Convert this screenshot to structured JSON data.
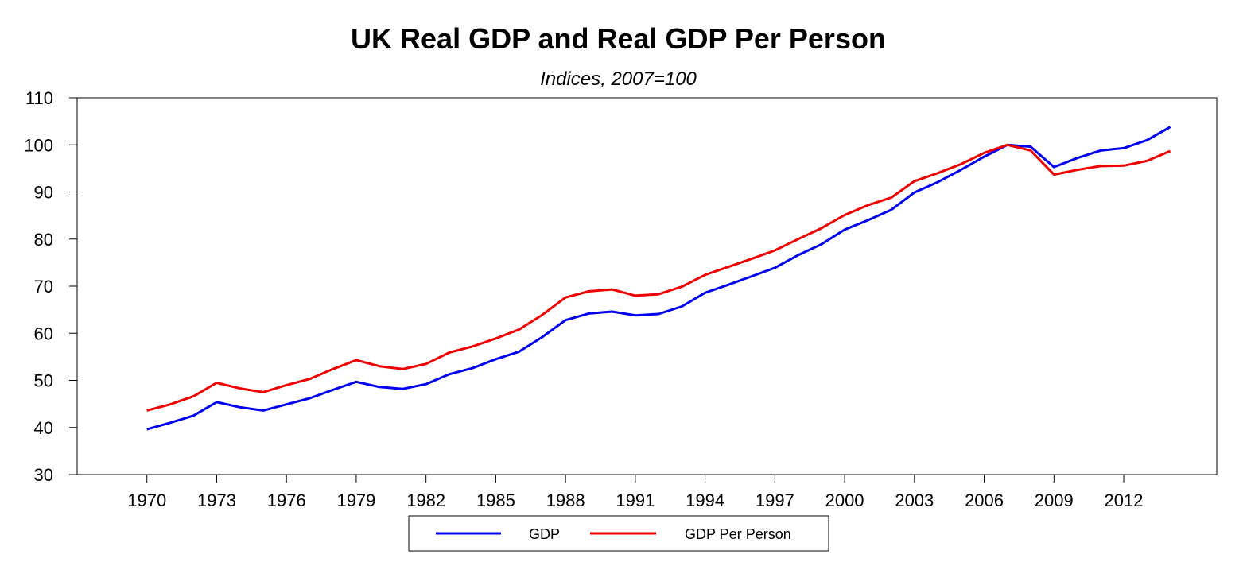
{
  "chart_data": {
    "type": "line",
    "title": "UK Real GDP and Real GDP Per Person",
    "subtitle": "Indices, 2007=100",
    "xlabel": "",
    "ylabel": "",
    "ylim": [
      30,
      110
    ],
    "yticks": [
      30,
      40,
      50,
      60,
      70,
      80,
      90,
      100,
      110
    ],
    "xlim": [
      1967,
      2016
    ],
    "xticks": [
      1970,
      1973,
      1976,
      1979,
      1982,
      1985,
      1988,
      1991,
      1994,
      1997,
      2000,
      2003,
      2006,
      2009,
      2012
    ],
    "grid": false,
    "legend_position": "bottom",
    "x": [
      1970,
      1971,
      1972,
      1973,
      1974,
      1975,
      1976,
      1977,
      1978,
      1979,
      1980,
      1981,
      1982,
      1983,
      1984,
      1985,
      1986,
      1987,
      1988,
      1989,
      1990,
      1991,
      1992,
      1993,
      1994,
      1995,
      1996,
      1997,
      1998,
      1999,
      2000,
      2001,
      2002,
      2003,
      2004,
      2005,
      2006,
      2007,
      2008,
      2009,
      2010,
      2011,
      2012,
      2013,
      2014
    ],
    "series": [
      {
        "name": "GDP",
        "color": "#0000ee",
        "values": [
          39.6,
          41.0,
          42.5,
          45.4,
          44.3,
          43.6,
          44.9,
          46.2,
          48.0,
          49.7,
          48.6,
          48.2,
          49.2,
          51.3,
          52.6,
          54.5,
          56.1,
          59.2,
          62.8,
          64.2,
          64.6,
          63.8,
          64.1,
          65.7,
          68.6,
          70.3,
          72.1,
          73.9,
          76.6,
          78.9,
          82.0,
          84.0,
          86.2,
          89.9,
          92.1,
          94.7,
          97.5,
          100.0,
          99.6,
          95.3,
          97.2,
          98.8,
          99.3,
          101.0,
          103.8
        ]
      },
      {
        "name": "GDP Per Person",
        "color": "#ee0000",
        "values": [
          43.6,
          44.9,
          46.6,
          49.5,
          48.3,
          47.5,
          49.0,
          50.3,
          52.4,
          54.3,
          53.0,
          52.4,
          53.5,
          55.9,
          57.2,
          58.9,
          60.8,
          63.9,
          67.6,
          68.9,
          69.3,
          68.0,
          68.3,
          69.9,
          72.4,
          74.1,
          75.8,
          77.6,
          80.0,
          82.3,
          85.1,
          87.2,
          88.8,
          92.3,
          94.0,
          95.9,
          98.3,
          100.0,
          98.8,
          93.7,
          94.7,
          95.5,
          95.6,
          96.6,
          98.7
        ]
      }
    ]
  }
}
